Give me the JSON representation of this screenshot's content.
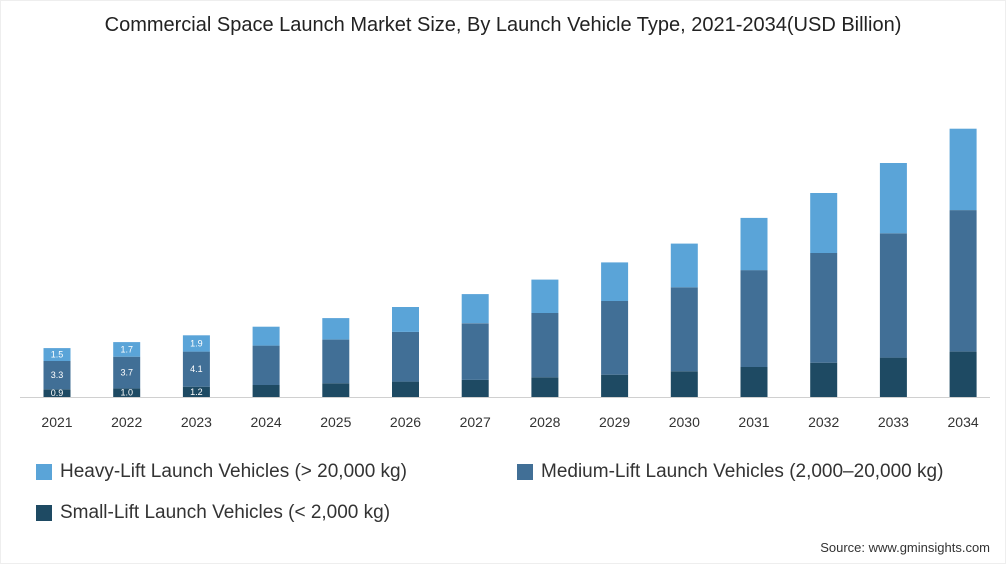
{
  "chart_data": {
    "type": "bar",
    "stacked": true,
    "title": "Commercial Space Launch Market Size, By Launch Vehicle Type, 2021-2034(USD Billion)",
    "categories": [
      "2021",
      "2022",
      "2023",
      "2024",
      "2025",
      "2026",
      "2027",
      "2028",
      "2029",
      "2030",
      "2031",
      "2032",
      "2033",
      "2034"
    ],
    "series": [
      {
        "name": "Small-Lift Launch Vehicles (< 2,000 kg)",
        "color": "#1e4a63",
        "values": [
          0.9,
          1.0,
          1.2,
          1.4,
          1.6,
          1.8,
          2.0,
          2.3,
          2.6,
          3.0,
          3.5,
          4.0,
          4.6,
          5.3
        ],
        "labels": [
          "0.9",
          "1.0",
          "1.2"
        ]
      },
      {
        "name": "Medium-Lift Launch Vehicles (2,000–20,000 kg)",
        "color": "#416f96",
        "values": [
          3.3,
          3.7,
          4.1,
          4.6,
          5.1,
          5.8,
          6.6,
          7.5,
          8.6,
          9.8,
          11.3,
          12.8,
          14.5,
          16.5
        ],
        "labels": [
          "3.3",
          "3.7",
          "4.1"
        ]
      },
      {
        "name": "Heavy-Lift Launch Vehicles (> 20,000 kg)",
        "color": "#5aa4d8",
        "values": [
          1.5,
          1.7,
          1.9,
          2.2,
          2.5,
          2.9,
          3.4,
          3.9,
          4.5,
          5.1,
          6.1,
          7.0,
          8.2,
          9.5
        ],
        "labels": [
          "1.5",
          "1.7",
          "1.9"
        ]
      }
    ],
    "ylim": [
      0,
      33.6
    ],
    "grid": false,
    "legend_position": "bottom",
    "source": "Source: www.gminsights.com"
  }
}
